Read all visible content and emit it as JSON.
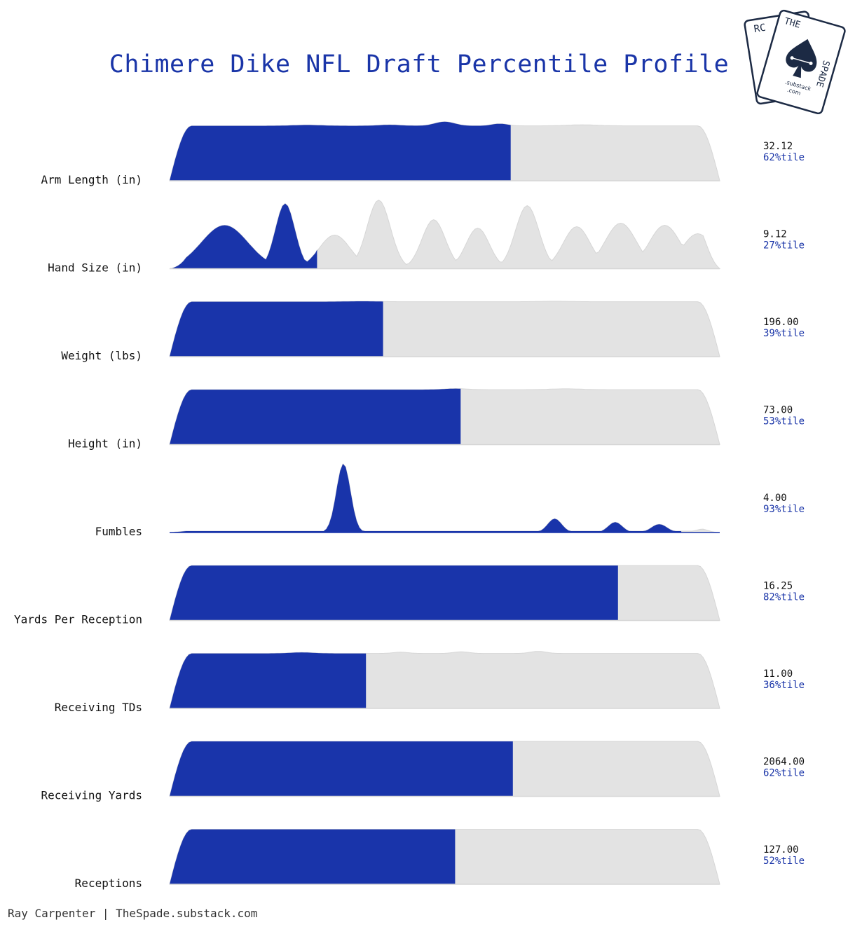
{
  "title": "Chimere Dike NFL Draft Percentile Profile",
  "credit": "Ray Carpenter | TheSpade.substack.com",
  "logo": {
    "top_text": "THE",
    "side_text": "SPADE",
    "back_text": "RC",
    "sub1": ".substack",
    "sub2": ".com",
    "icon": "spade-icon"
  },
  "colors": {
    "accent": "#1a35a8",
    "filled": "#1934aa",
    "empty": "#e3e3e3",
    "empty_stroke": "#d6d6d6",
    "label": "#111111"
  },
  "chart_data": {
    "type": "ridgeline",
    "title": "Chimere Dike NFL Draft Percentile Profile",
    "rows": [
      {
        "label": "Arm Length (in)",
        "value": "32.12",
        "percentile_text": "62%tile",
        "percentile": 62,
        "fill_fraction": 0.62,
        "shape": "plateau",
        "bumps": [
          [
            0.5,
            0.2,
            0.025
          ],
          [
            0.4,
            0.05,
            0.03
          ],
          [
            0.25,
            0.04,
            0.04
          ],
          [
            0.6,
            0.1,
            0.02
          ],
          [
            0.75,
            0.05,
            0.04
          ]
        ]
      },
      {
        "label": "Hand Size (in)",
        "value": "9.12",
        "percentile_text": "27%tile",
        "percentile": 27,
        "fill_fraction": 0.268,
        "shape": "multi",
        "bumps": [
          [
            0.1,
            0.62,
            0.06
          ],
          [
            0.21,
            0.93,
            0.025
          ],
          [
            0.3,
            0.48,
            0.04
          ],
          [
            0.38,
            0.98,
            0.03
          ],
          [
            0.48,
            0.7,
            0.03
          ],
          [
            0.56,
            0.58,
            0.03
          ],
          [
            0.65,
            0.9,
            0.03
          ],
          [
            0.74,
            0.6,
            0.035
          ],
          [
            0.82,
            0.65,
            0.04
          ],
          [
            0.9,
            0.62,
            0.04
          ],
          [
            0.96,
            0.5,
            0.04
          ]
        ]
      },
      {
        "label": "Weight (lbs)",
        "value": "196.00",
        "percentile_text": "39%tile",
        "percentile": 39,
        "fill_fraction": 0.388,
        "shape": "plateau",
        "bumps": [
          [
            0.35,
            0.02,
            0.04
          ],
          [
            0.7,
            0.02,
            0.04
          ]
        ]
      },
      {
        "label": "Height (in)",
        "value": "73.00",
        "percentile_text": "53%tile",
        "percentile": 53,
        "fill_fraction": 0.529,
        "shape": "plateau",
        "bumps": [
          [
            0.52,
            0.05,
            0.03
          ],
          [
            0.72,
            0.04,
            0.04
          ]
        ]
      },
      {
        "label": "Fumbles",
        "value": "4.00",
        "percentile_text": "93%tile",
        "percentile": 93,
        "fill_fraction": 0.93,
        "shape": "multi",
        "bumps": [
          [
            0.316,
            1.0,
            0.018
          ],
          [
            0.7,
            0.2,
            0.018
          ],
          [
            0.81,
            0.15,
            0.018
          ],
          [
            0.89,
            0.12,
            0.02
          ],
          [
            0.97,
            0.05,
            0.02
          ]
        ]
      },
      {
        "label": "Yards Per Reception",
        "value": "16.25",
        "percentile_text": "82%tile",
        "percentile": 82,
        "fill_fraction": 0.815,
        "shape": "plateau",
        "bumps": []
      },
      {
        "label": "Receiving TDs",
        "value": "11.00",
        "percentile_text": "36%tile",
        "percentile": 36,
        "fill_fraction": 0.357,
        "shape": "plateau",
        "bumps": [
          [
            0.24,
            0.05,
            0.03
          ],
          [
            0.42,
            0.06,
            0.02
          ],
          [
            0.53,
            0.08,
            0.02
          ],
          [
            0.67,
            0.1,
            0.02
          ]
        ]
      },
      {
        "label": "Receiving Yards",
        "value": "2064.00",
        "percentile_text": "62%tile",
        "percentile": 62,
        "fill_fraction": 0.624,
        "shape": "plateau",
        "bumps": []
      },
      {
        "label": "Receptions",
        "value": "127.00",
        "percentile_text": "52%tile",
        "percentile": 52,
        "fill_fraction": 0.519,
        "shape": "plateau",
        "bumps": []
      }
    ]
  }
}
